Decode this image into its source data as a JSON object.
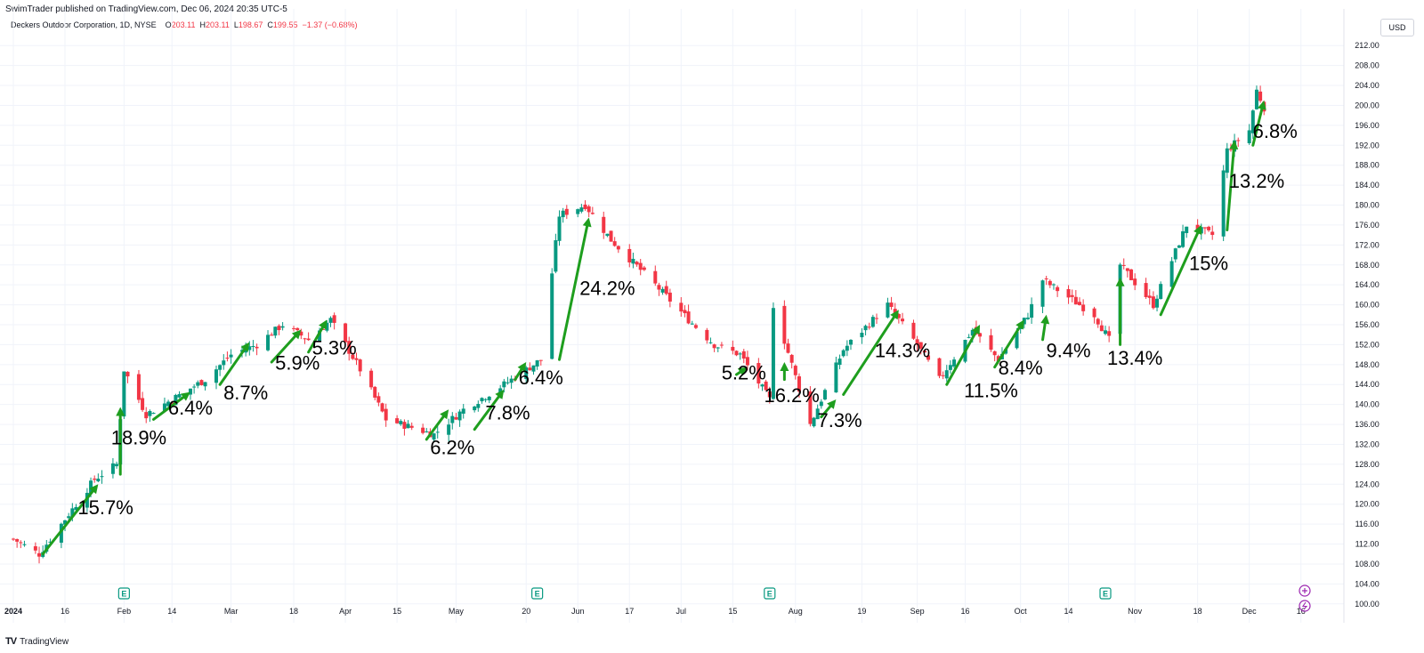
{
  "header": {
    "published": "SwimTrader published on TradingView.com, Dec 06, 2024 20:35 UTC-5",
    "symbol": "Deckers Outdoor Corporation, 1D, NYSE",
    "ohlc": {
      "o_label": "O",
      "o": "203.11",
      "h_label": "H",
      "h": "203.11",
      "l_label": "L",
      "l": "198.67",
      "c_label": "C",
      "c": "199.55",
      "change": "−1.37 (−0.68%)"
    },
    "currency": "USD"
  },
  "footer": {
    "brand": "TradingView",
    "mark": "TV"
  },
  "colors": {
    "up": "#089981",
    "down": "#f23645",
    "arrow": "#1e9e1e",
    "earnings": "#089981",
    "grid": "#f0f3fa"
  },
  "chart_data": {
    "type": "candlestick",
    "title": "",
    "ylim": [
      98,
      214
    ],
    "y_ticks": [
      "212.00",
      "208.00",
      "204.00",
      "200.00",
      "196.00",
      "192.00",
      "188.00",
      "184.00",
      "180.00",
      "176.00",
      "172.00",
      "168.00",
      "164.00",
      "160.00",
      "156.00",
      "152.00",
      "148.00",
      "144.00",
      "140.00",
      "136.00",
      "132.00",
      "128.00",
      "124.00",
      "120.00",
      "116.00",
      "112.00",
      "108.00",
      "104.00",
      "100.00"
    ],
    "x_ticks": [
      {
        "label": "2024",
        "date": "2024-01-02",
        "bold": true
      },
      {
        "label": "16",
        "date": "2024-01-16"
      },
      {
        "label": "Feb",
        "date": "2024-02-01"
      },
      {
        "label": "14",
        "date": "2024-02-14"
      },
      {
        "label": "Mar",
        "date": "2024-03-01"
      },
      {
        "label": "18",
        "date": "2024-03-18"
      },
      {
        "label": "Apr",
        "date": "2024-04-01"
      },
      {
        "label": "15",
        "date": "2024-04-15"
      },
      {
        "label": "May",
        "date": "2024-05-01"
      },
      {
        "label": "20",
        "date": "2024-05-20"
      },
      {
        "label": "Jun",
        "date": "2024-06-03"
      },
      {
        "label": "17",
        "date": "2024-06-17"
      },
      {
        "label": "Jul",
        "date": "2024-07-01"
      },
      {
        "label": "15",
        "date": "2024-07-15"
      },
      {
        "label": "Aug",
        "date": "2024-08-01"
      },
      {
        "label": "19",
        "date": "2024-08-19"
      },
      {
        "label": "Sep",
        "date": "2024-09-03"
      },
      {
        "label": "16",
        "date": "2024-09-16"
      },
      {
        "label": "Oct",
        "date": "2024-10-01"
      },
      {
        "label": "14",
        "date": "2024-10-14"
      },
      {
        "label": "Nov",
        "date": "2024-11-01"
      },
      {
        "label": "18",
        "date": "2024-11-18"
      },
      {
        "label": "Dec",
        "date": "2024-12-02"
      },
      {
        "label": "16",
        "date": "2024-12-16"
      }
    ],
    "key_closes": [
      {
        "date": "2024-01-02",
        "close": 113
      },
      {
        "date": "2024-01-09",
        "close": 110
      },
      {
        "date": "2024-01-16",
        "close": 117
      },
      {
        "date": "2024-01-24",
        "close": 125
      },
      {
        "date": "2024-01-30",
        "close": 128
      },
      {
        "date": "2024-02-01",
        "close": 147
      },
      {
        "date": "2024-02-07",
        "close": 138
      },
      {
        "date": "2024-02-14",
        "close": 141
      },
      {
        "date": "2024-02-23",
        "close": 145
      },
      {
        "date": "2024-03-01",
        "close": 150
      },
      {
        "date": "2024-03-08",
        "close": 152
      },
      {
        "date": "2024-03-15",
        "close": 156
      },
      {
        "date": "2024-03-22",
        "close": 153
      },
      {
        "date": "2024-03-28",
        "close": 157
      },
      {
        "date": "2024-04-05",
        "close": 147
      },
      {
        "date": "2024-04-12",
        "close": 137
      },
      {
        "date": "2024-04-25",
        "close": 134
      },
      {
        "date": "2024-05-03",
        "close": 139
      },
      {
        "date": "2024-05-14",
        "close": 144
      },
      {
        "date": "2024-05-24",
        "close": 149
      },
      {
        "date": "2024-05-29",
        "close": 178
      },
      {
        "date": "2024-06-05",
        "close": 180
      },
      {
        "date": "2024-06-12",
        "close": 173
      },
      {
        "date": "2024-06-24",
        "close": 164
      },
      {
        "date": "2024-07-03",
        "close": 157
      },
      {
        "date": "2024-07-10",
        "close": 152
      },
      {
        "date": "2024-07-17",
        "close": 150
      },
      {
        "date": "2024-07-25",
        "close": 141
      },
      {
        "date": "2024-07-26",
        "close": 160
      },
      {
        "date": "2024-08-05",
        "close": 136
      },
      {
        "date": "2024-08-14",
        "close": 151
      },
      {
        "date": "2024-08-26",
        "close": 160
      },
      {
        "date": "2024-09-03",
        "close": 152
      },
      {
        "date": "2024-09-09",
        "close": 145
      },
      {
        "date": "2024-09-18",
        "close": 155
      },
      {
        "date": "2024-09-25",
        "close": 149
      },
      {
        "date": "2024-10-03",
        "close": 158
      },
      {
        "date": "2024-10-07",
        "close": 165
      },
      {
        "date": "2024-10-21",
        "close": 158
      },
      {
        "date": "2024-10-25",
        "close": 153
      },
      {
        "date": "2024-10-28",
        "close": 168
      },
      {
        "date": "2024-11-06",
        "close": 160
      },
      {
        "date": "2024-11-15",
        "close": 176
      },
      {
        "date": "2024-11-22",
        "close": 174
      },
      {
        "date": "2024-11-26",
        "close": 191
      },
      {
        "date": "2024-12-02",
        "close": 195
      },
      {
        "date": "2024-12-04",
        "close": 203
      },
      {
        "date": "2024-12-06",
        "close": 199.55
      }
    ],
    "earnings_dates": [
      "2024-02-01",
      "2024-05-23",
      "2024-07-25",
      "2024-10-24"
    ],
    "annotations": [
      {
        "from": "2024-01-10",
        "y0": 110,
        "to": "2024-01-25",
        "y1": 124,
        "label": "15.7%",
        "label_date": "2024-01-27",
        "label_y": 118
      },
      {
        "from": "2024-01-31",
        "y0": 126,
        "to": "2024-01-31",
        "y1": 139.5,
        "label": "18.9%",
        "label_date": "2024-02-05",
        "label_y": 132
      },
      {
        "from": "2024-02-09",
        "y0": 137,
        "to": "2024-02-19",
        "y1": 142.5,
        "label": "6.4%",
        "label_date": "2024-02-19",
        "label_y": 138
      },
      {
        "from": "2024-02-27",
        "y0": 144,
        "to": "2024-03-06",
        "y1": 152.5,
        "label": "8.7%",
        "label_date": "2024-03-05",
        "label_y": 141
      },
      {
        "from": "2024-03-12",
        "y0": 148.5,
        "to": "2024-03-20",
        "y1": 155,
        "label": "5.9%",
        "label_date": "2024-03-19",
        "label_y": 147
      },
      {
        "from": "2024-03-22",
        "y0": 150.5,
        "to": "2024-03-27",
        "y1": 157,
        "label": "5.3%",
        "label_date": "2024-03-29",
        "label_y": 150
      },
      {
        "from": "2024-04-23",
        "y0": 133,
        "to": "2024-04-29",
        "y1": 139,
        "label": "6.2%",
        "label_date": "2024-04-30",
        "label_y": 130
      },
      {
        "from": "2024-05-06",
        "y0": 135,
        "to": "2024-05-14",
        "y1": 143,
        "label": "7.8%",
        "label_date": "2024-05-15",
        "label_y": 137
      },
      {
        "from": "2024-05-17",
        "y0": 145,
        "to": "2024-05-20",
        "y1": 148.5,
        "label": "6.4%",
        "label_date": "2024-05-24",
        "label_y": 144
      },
      {
        "from": "2024-05-29",
        "y0": 149,
        "to": "2024-06-06",
        "y1": 177.5,
        "label": "24.2%",
        "label_date": "2024-06-11",
        "label_y": 162
      },
      {
        "from": "2024-07-16",
        "y0": 146,
        "to": "2024-07-19",
        "y1": 147.5,
        "label": "5.2%",
        "label_date": "2024-07-18",
        "label_y": 145
      },
      {
        "from": "2024-07-29",
        "y0": 145,
        "to": "2024-07-29",
        "y1": 148.5,
        "label": "16.2%",
        "label_date": "2024-07-31",
        "label_y": 140.5
      },
      {
        "from": "2024-08-08",
        "y0": 137.5,
        "to": "2024-08-12",
        "y1": 141,
        "label": "7.3%",
        "label_date": "2024-08-13",
        "label_y": 135.5
      },
      {
        "from": "2024-08-14",
        "y0": 142,
        "to": "2024-08-29",
        "y1": 159,
        "label": "14.3%",
        "label_date": "2024-08-30",
        "label_y": 149.5
      },
      {
        "from": "2024-09-11",
        "y0": 144,
        "to": "2024-09-20",
        "y1": 156,
        "label": "11.5%",
        "label_date": "2024-09-23",
        "label_y": 141.5
      },
      {
        "from": "2024-09-24",
        "y0": 147.5,
        "to": "2024-10-02",
        "y1": 157,
        "label": "8.4%",
        "label_date": "2024-10-01",
        "label_y": 146
      },
      {
        "from": "2024-10-07",
        "y0": 153,
        "to": "2024-10-08",
        "y1": 158,
        "label": "9.4%",
        "label_date": "2024-10-14",
        "label_y": 149.5
      },
      {
        "from": "2024-10-28",
        "y0": 152,
        "to": "2024-10-28",
        "y1": 165.5,
        "label": "13.4%",
        "label_date": "2024-11-01",
        "label_y": 148
      },
      {
        "from": "2024-11-08",
        "y0": 158,
        "to": "2024-11-19",
        "y1": 176,
        "label": "15%",
        "label_date": "2024-11-21",
        "label_y": 167
      },
      {
        "from": "2024-11-26",
        "y0": 175,
        "to": "2024-11-28",
        "y1": 193,
        "label": "13.2%",
        "label_date": "2024-12-04",
        "label_y": 183.5
      },
      {
        "from": "2024-12-03",
        "y0": 192,
        "to": "2024-12-06",
        "y1": 201,
        "label": "6.8%",
        "label_date": "2024-12-09",
        "label_y": 193.5
      }
    ]
  }
}
